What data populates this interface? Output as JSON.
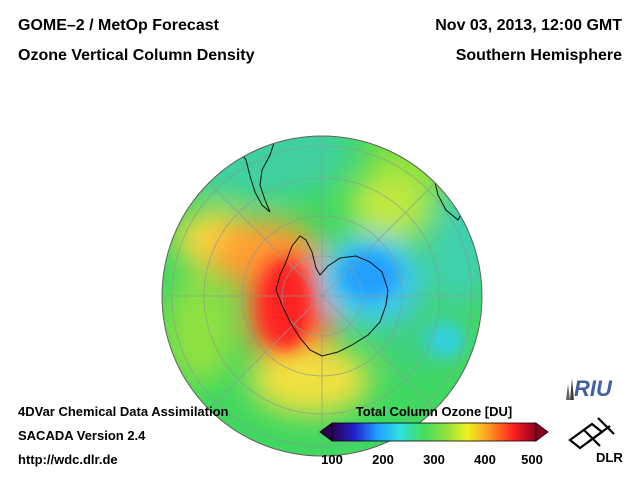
{
  "header": {
    "title": "GOME–2 / MetOp Forecast",
    "subtitle": "Ozone Vertical Column Density",
    "date": "Nov 03, 2013, 12:00 GMT",
    "region": "Southern Hemisphere"
  },
  "footer": {
    "assimilation": "4DVar Chemical Data Assimilation",
    "version": "SACADA Version 2.4",
    "url": "http://wdc.dlr.de"
  },
  "colorbar": {
    "title": "Total Column Ozone [DU]",
    "min": 100,
    "max": 500,
    "ticks": [
      "100",
      "200",
      "300",
      "400",
      "500"
    ],
    "colors": [
      "#2a0050",
      "#2020d0",
      "#20a0ff",
      "#30e0e0",
      "#40e060",
      "#90e040",
      "#f0f020",
      "#ff9020",
      "#ff2020",
      "#900020"
    ]
  },
  "logos": {
    "riu": "RIU",
    "dlr": "DLR"
  },
  "map": {
    "projection": "orthographic south pole",
    "field": "total column ozone",
    "features": [
      {
        "name": "ozone-maximum",
        "level_du": 480
      },
      {
        "name": "ozone-hole-minimum",
        "level_du": 210
      }
    ]
  }
}
